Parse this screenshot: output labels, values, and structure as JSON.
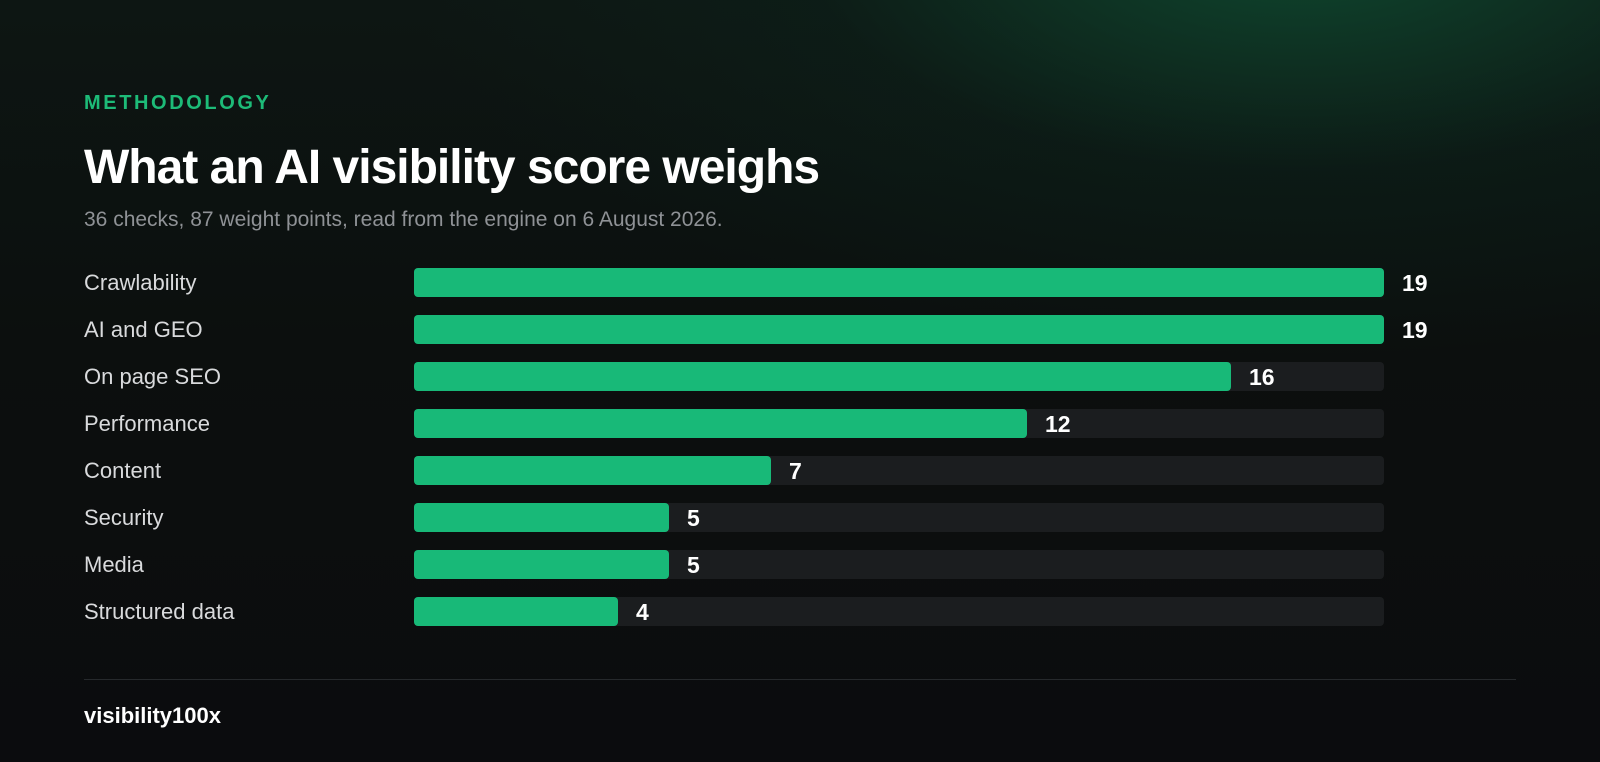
{
  "header": {
    "eyebrow": "METHODOLOGY",
    "title": "What an AI visibility score weighs",
    "subtitle": "36 checks, 87 weight points, read from the engine on 6 August 2026."
  },
  "chart_data": {
    "type": "bar",
    "orientation": "horizontal",
    "title": "What an AI visibility score weighs",
    "subtitle": "36 checks, 87 weight points, read from the engine on 6 August 2026.",
    "categories": [
      "Crawlability",
      "AI and GEO",
      "On page SEO",
      "Performance",
      "Content",
      "Security",
      "Media",
      "Structured data"
    ],
    "values": [
      19,
      19,
      16,
      12,
      7,
      5,
      5,
      4
    ],
    "xlim": [
      0,
      19
    ],
    "xlabel": "",
    "ylabel": "",
    "grid": false,
    "colors": {
      "bar": "#18b978",
      "track": "#1b1d1f"
    }
  },
  "footer": {
    "brand": "visibility100x"
  },
  "colors": {
    "accent": "#1dbb78",
    "background": "#0c0d0f"
  }
}
